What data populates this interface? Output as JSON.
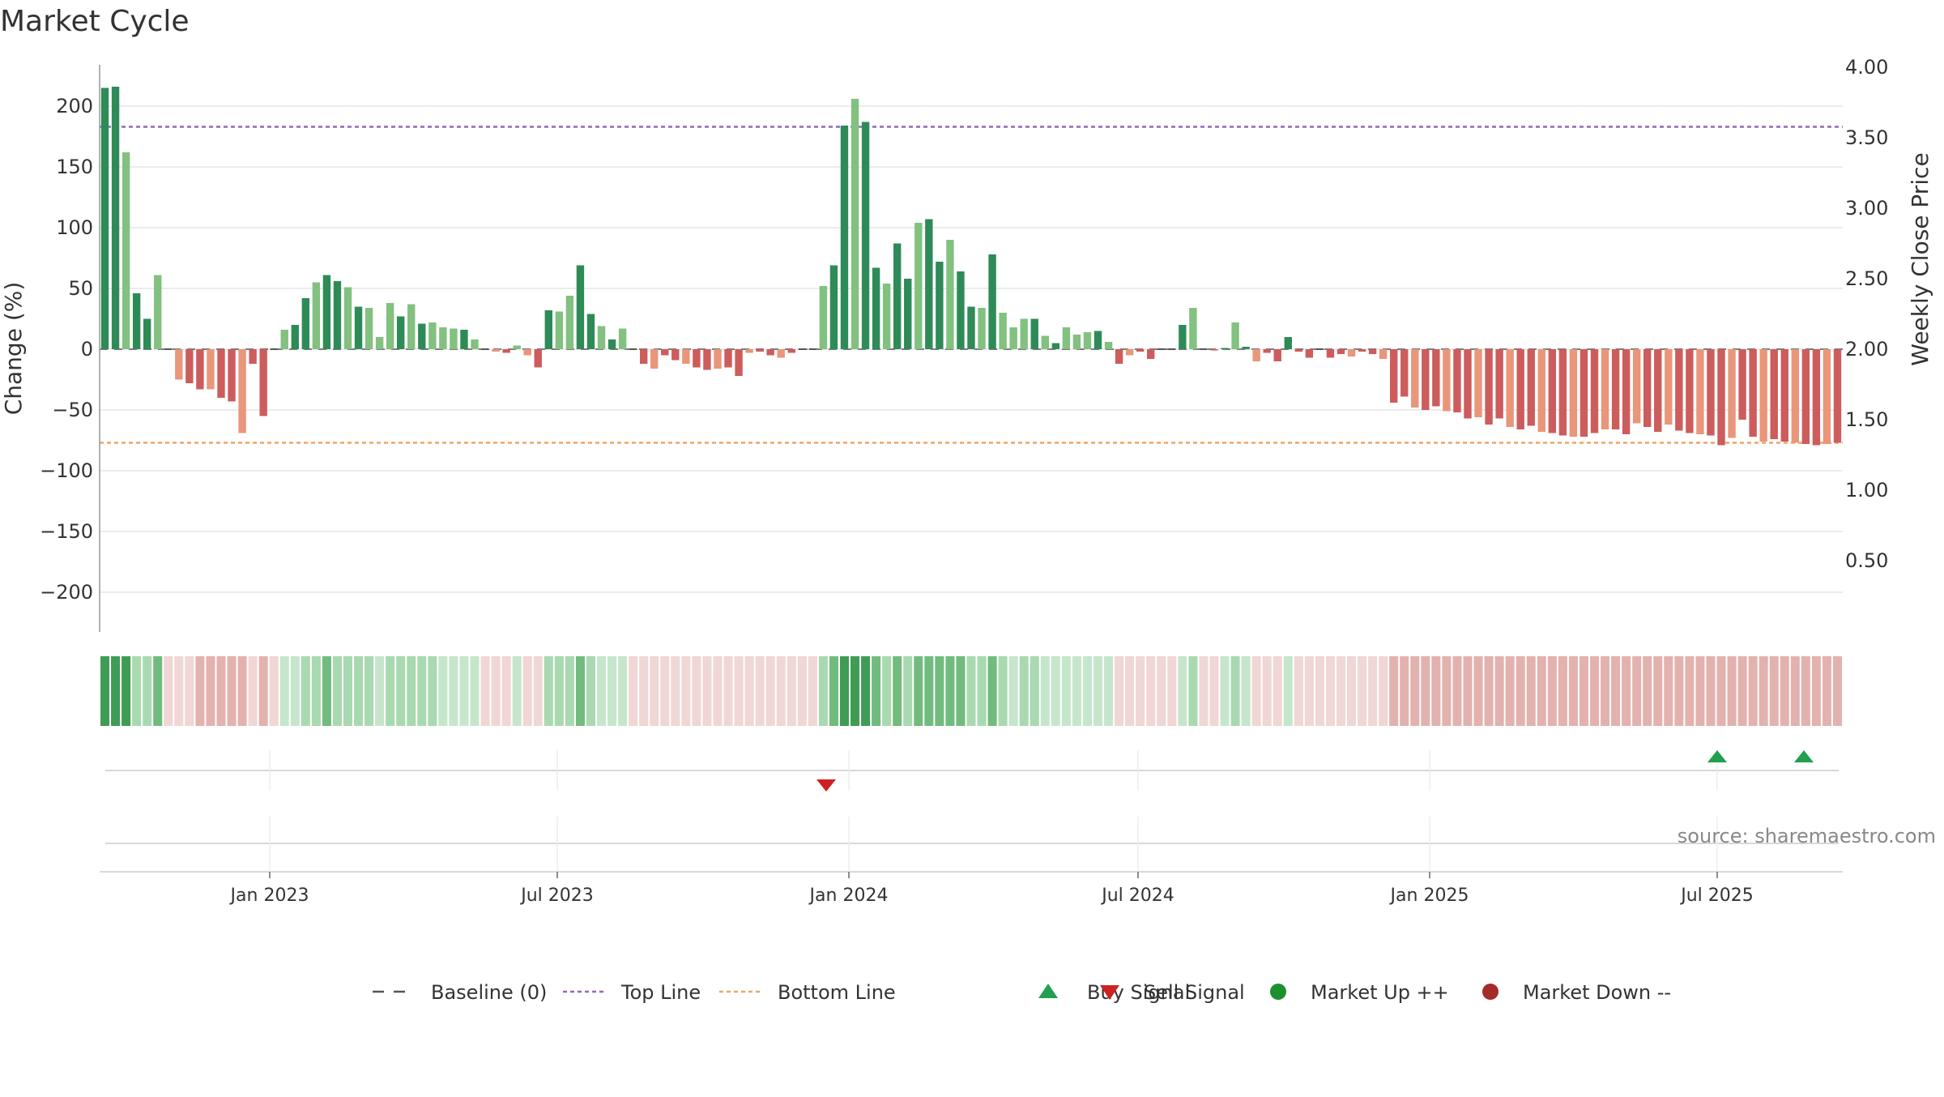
{
  "chart_data": {
    "type": "bar",
    "title": "Market Cycle",
    "ylabel": "Change (%)",
    "y2label": "Weekly Close Price",
    "ylim": [
      -235,
      235
    ],
    "y2lim": [
      0.07,
      4.23
    ],
    "yticks": [
      "200",
      "150",
      "100",
      "50",
      "0",
      "−50",
      "−100",
      "−150",
      "−200"
    ],
    "y2ticks": [
      "4.00",
      "3.50",
      "3.00",
      "2.50",
      "2.00",
      "1.50",
      "1.00",
      "0.50"
    ],
    "xticks": [
      "Jan 2023",
      "Jul 2023",
      "Jan 2024",
      "Jul 2024",
      "Jan 2025",
      "Jul 2025"
    ],
    "top_line": 183,
    "bottom_line": -77,
    "grid": true,
    "legend_position": "bottom",
    "series": [
      {
        "values": [
          215,
          216,
          162,
          46,
          25,
          61,
          0,
          -25,
          -28,
          -33,
          -33,
          -40,
          -43,
          -69,
          -12,
          -55,
          0,
          16,
          20,
          42,
          55,
          61,
          56,
          51,
          35,
          34,
          10,
          38,
          27,
          37,
          21,
          22,
          18,
          17,
          16,
          8,
          0,
          -2,
          -3,
          3,
          -5,
          -15,
          32,
          31,
          44,
          69,
          29,
          19,
          8,
          17,
          0,
          -12,
          -16,
          -5,
          -9,
          -12,
          -15,
          -17,
          -16,
          -15,
          -22,
          -3,
          -2,
          -5,
          -7,
          -3,
          0,
          0,
          52,
          69,
          184,
          206,
          187,
          67,
          54,
          87,
          58,
          104,
          107,
          72,
          90,
          64,
          35,
          34,
          78,
          30,
          18,
          25,
          25,
          11,
          5,
          18,
          12,
          14,
          15,
          6,
          -12,
          -5,
          -2,
          -8,
          0,
          0,
          20,
          34,
          0,
          -1,
          1,
          22,
          2,
          -10,
          -3,
          -10,
          10,
          -2,
          -7,
          0,
          -7,
          -4,
          -6,
          -2,
          -4,
          -8,
          -44,
          -39,
          -48,
          -50,
          -47,
          -51,
          -52,
          -57,
          -56,
          -62,
          -57,
          -64,
          -66,
          -63,
          -68,
          -69,
          -71,
          -72,
          -72,
          -69,
          -66,
          -66,
          -70,
          -61,
          -64,
          -68,
          -62,
          -67,
          -69,
          -70,
          -71,
          -79,
          -73,
          -58,
          -72,
          -76,
          -74,
          -76,
          -77,
          -78,
          -79,
          -78,
          -77
        ]
      }
    ],
    "signals": {
      "buy": [
        "Jul 2025",
        "Sep 2025"
      ],
      "sell": [
        "Dec 2023"
      ]
    }
  },
  "colors": {
    "strong_up": "#2e8b57",
    "mild_up": "#82c17f",
    "strong_down": "#cd5c5c",
    "mild_down": "#e9967a",
    "top_line": "#9467bd",
    "bottom_line": "#f4a460",
    "buy": "#20a050",
    "sell": "#cc2222"
  },
  "legend": [
    {
      "label": "Baseline (0)",
      "icon": "dash-line",
      "color": "#555555"
    },
    {
      "label": "Top Line",
      "icon": "dotted-line",
      "color": "#9467bd"
    },
    {
      "label": "Bottom Line",
      "icon": "dotted-line",
      "color": "#f4a460"
    },
    {
      "label": "Buy Signal",
      "icon": "triangle-up",
      "color": "#20a050"
    },
    {
      "label": "Sell Signal",
      "icon": "triangle-down",
      "color": "#cc2222"
    },
    {
      "label": "Market Up ++",
      "icon": "circle",
      "color": "#1e8f2e"
    },
    {
      "label": "Market Down --",
      "icon": "circle",
      "color": "#a52a2a"
    }
  ],
  "source": "source: sharemaestro.com"
}
